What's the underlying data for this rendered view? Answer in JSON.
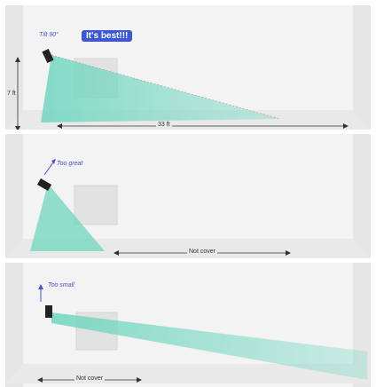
{
  "panels": [
    {
      "angle_label": "Tilt 90°",
      "badge": "It's best!!!",
      "height_label": "7 ft",
      "distance_label": "33 ft"
    },
    {
      "angle_label": "Too great",
      "distance_label": "Not cover"
    },
    {
      "angle_label": "Too small",
      "distance_label": "Not cover"
    }
  ],
  "colors": {
    "beam": "#6fd6bf",
    "badge": "#3b57d8",
    "wall": "#f3f3f3",
    "floor": "#e9e9e9"
  }
}
